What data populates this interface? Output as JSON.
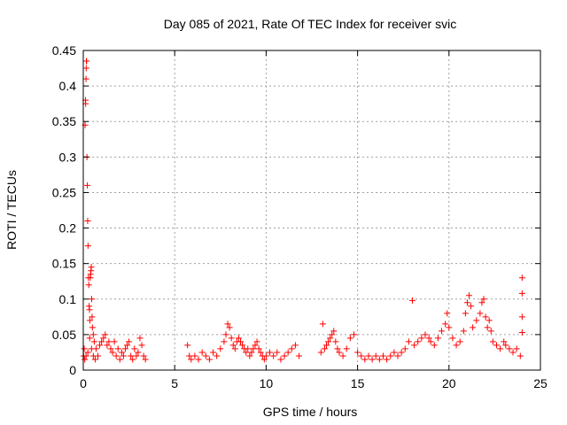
{
  "chart_data": {
    "type": "scatter",
    "title": "Day 085 of 2021, Rate Of TEC Index for receiver svic",
    "xlabel": "GPS time / hours",
    "ylabel": "ROTI / TECUs",
    "xlim": [
      0,
      25
    ],
    "ylim": [
      0,
      0.45
    ],
    "x_ticks": [
      0,
      5,
      10,
      15,
      20,
      25
    ],
    "x_tick_labels": [
      "0",
      "5",
      "10",
      "15",
      "20",
      "25"
    ],
    "y_ticks": [
      0,
      0.05,
      0.1,
      0.15,
      0.2,
      0.25,
      0.3,
      0.35,
      0.4,
      0.45
    ],
    "y_tick_labels": [
      "0",
      "0.05",
      "0.1",
      "0.15",
      "0.2",
      "0.25",
      "0.3",
      "0.35",
      "0.4",
      "0.45"
    ],
    "grid": true,
    "marker": "plus",
    "color": "#ff0000",
    "series": [
      {
        "points": [
          [
            0.02,
            0.02
          ],
          [
            0.05,
            0.03
          ],
          [
            0.08,
            0.015
          ],
          [
            0.1,
            0.345
          ],
          [
            0.12,
            0.38
          ],
          [
            0.13,
            0.375
          ],
          [
            0.15,
            0.41
          ],
          [
            0.16,
            0.425
          ],
          [
            0.17,
            0.435
          ],
          [
            0.18,
            0.435
          ],
          [
            0.2,
            0.3
          ],
          [
            0.22,
            0.26
          ],
          [
            0.24,
            0.21
          ],
          [
            0.26,
            0.175
          ],
          [
            0.28,
            0.13
          ],
          [
            0.3,
            0.12
          ],
          [
            0.32,
            0.09
          ],
          [
            0.34,
            0.085
          ],
          [
            0.36,
            0.07
          ],
          [
            0.38,
            0.13
          ],
          [
            0.4,
            0.135
          ],
          [
            0.42,
            0.14
          ],
          [
            0.44,
            0.145
          ],
          [
            0.46,
            0.1
          ],
          [
            0.48,
            0.075
          ],
          [
            0.5,
            0.06
          ],
          [
            0.55,
            0.05
          ],
          [
            0.6,
            0.04
          ],
          [
            0.15,
            0.02
          ],
          [
            0.25,
            0.025
          ],
          [
            0.35,
            0.045
          ],
          [
            0.45,
            0.03
          ],
          [
            0.55,
            0.02
          ],
          [
            0.65,
            0.015
          ],
          [
            0.7,
            0.03
          ],
          [
            0.8,
            0.02
          ],
          [
            0.9,
            0.035
          ],
          [
            1.0,
            0.04
          ],
          [
            1.1,
            0.045
          ],
          [
            1.2,
            0.05
          ],
          [
            1.3,
            0.035
          ],
          [
            1.4,
            0.04
          ],
          [
            1.5,
            0.03
          ],
          [
            1.6,
            0.025
          ],
          [
            1.7,
            0.04
          ],
          [
            1.8,
            0.02
          ],
          [
            1.9,
            0.03
          ],
          [
            2.0,
            0.015
          ],
          [
            2.1,
            0.025
          ],
          [
            2.2,
            0.02
          ],
          [
            2.3,
            0.03
          ],
          [
            2.4,
            0.035
          ],
          [
            2.5,
            0.04
          ],
          [
            2.6,
            0.02
          ],
          [
            2.7,
            0.015
          ],
          [
            2.8,
            0.03
          ],
          [
            2.9,
            0.02
          ],
          [
            3.0,
            0.025
          ],
          [
            3.1,
            0.045
          ],
          [
            3.2,
            0.035
          ],
          [
            3.3,
            0.02
          ],
          [
            3.4,
            0.015
          ],
          [
            5.7,
            0.035
          ],
          [
            5.8,
            0.02
          ],
          [
            5.9,
            0.015
          ],
          [
            6.1,
            0.02
          ],
          [
            6.3,
            0.015
          ],
          [
            6.5,
            0.025
          ],
          [
            6.7,
            0.02
          ],
          [
            6.9,
            0.015
          ],
          [
            7.1,
            0.025
          ],
          [
            7.3,
            0.02
          ],
          [
            7.5,
            0.03
          ],
          [
            7.7,
            0.04
          ],
          [
            7.8,
            0.05
          ],
          [
            7.9,
            0.065
          ],
          [
            8.0,
            0.06
          ],
          [
            8.1,
            0.045
          ],
          [
            8.2,
            0.035
          ],
          [
            8.3,
            0.03
          ],
          [
            8.4,
            0.04
          ],
          [
            8.5,
            0.045
          ],
          [
            8.6,
            0.04
          ],
          [
            8.7,
            0.035
          ],
          [
            8.8,
            0.03
          ],
          [
            8.9,
            0.025
          ],
          [
            9.0,
            0.03
          ],
          [
            9.1,
            0.02
          ],
          [
            9.2,
            0.025
          ],
          [
            9.3,
            0.03
          ],
          [
            9.4,
            0.035
          ],
          [
            9.5,
            0.04
          ],
          [
            9.6,
            0.03
          ],
          [
            9.7,
            0.025
          ],
          [
            9.8,
            0.02
          ],
          [
            9.9,
            0.015
          ],
          [
            10.0,
            0.02
          ],
          [
            10.2,
            0.025
          ],
          [
            10.4,
            0.02
          ],
          [
            10.6,
            0.025
          ],
          [
            10.8,
            0.015
          ],
          [
            11.0,
            0.02
          ],
          [
            11.2,
            0.025
          ],
          [
            11.4,
            0.03
          ],
          [
            11.6,
            0.035
          ],
          [
            11.8,
            0.02
          ],
          [
            13.0,
            0.025
          ],
          [
            13.1,
            0.065
          ],
          [
            13.2,
            0.03
          ],
          [
            13.3,
            0.035
          ],
          [
            13.4,
            0.04
          ],
          [
            13.5,
            0.045
          ],
          [
            13.6,
            0.05
          ],
          [
            13.7,
            0.055
          ],
          [
            13.8,
            0.04
          ],
          [
            13.9,
            0.03
          ],
          [
            14.0,
            0.025
          ],
          [
            14.2,
            0.02
          ],
          [
            14.4,
            0.03
          ],
          [
            14.6,
            0.045
          ],
          [
            14.8,
            0.05
          ],
          [
            15.0,
            0.025
          ],
          [
            15.2,
            0.02
          ],
          [
            15.4,
            0.015
          ],
          [
            15.6,
            0.02
          ],
          [
            15.8,
            0.015
          ],
          [
            16.0,
            0.02
          ],
          [
            16.2,
            0.015
          ],
          [
            16.4,
            0.02
          ],
          [
            16.6,
            0.015
          ],
          [
            16.8,
            0.02
          ],
          [
            17.0,
            0.025
          ],
          [
            17.2,
            0.02
          ],
          [
            17.4,
            0.025
          ],
          [
            17.6,
            0.03
          ],
          [
            17.8,
            0.04
          ],
          [
            18.0,
            0.098
          ],
          [
            18.1,
            0.035
          ],
          [
            18.3,
            0.04
          ],
          [
            18.5,
            0.045
          ],
          [
            18.7,
            0.05
          ],
          [
            18.9,
            0.045
          ],
          [
            19.0,
            0.04
          ],
          [
            19.2,
            0.035
          ],
          [
            19.4,
            0.045
          ],
          [
            19.6,
            0.055
          ],
          [
            19.8,
            0.065
          ],
          [
            19.9,
            0.08
          ],
          [
            20.0,
            0.06
          ],
          [
            20.2,
            0.045
          ],
          [
            20.4,
            0.035
          ],
          [
            20.6,
            0.04
          ],
          [
            20.8,
            0.055
          ],
          [
            20.9,
            0.08
          ],
          [
            21.0,
            0.095
          ],
          [
            21.1,
            0.105
          ],
          [
            21.2,
            0.09
          ],
          [
            21.3,
            0.06
          ],
          [
            21.5,
            0.07
          ],
          [
            21.7,
            0.08
          ],
          [
            21.8,
            0.095
          ],
          [
            21.9,
            0.1
          ],
          [
            22.0,
            0.075
          ],
          [
            22.1,
            0.06
          ],
          [
            22.2,
            0.07
          ],
          [
            22.3,
            0.055
          ],
          [
            22.4,
            0.04
          ],
          [
            22.6,
            0.035
          ],
          [
            22.8,
            0.03
          ],
          [
            23.0,
            0.04
          ],
          [
            23.1,
            0.035
          ],
          [
            23.3,
            0.03
          ],
          [
            23.5,
            0.025
          ],
          [
            23.7,
            0.03
          ],
          [
            23.9,
            0.02
          ],
          [
            24.0,
            0.13
          ],
          [
            24.0,
            0.108
          ],
          [
            24.0,
            0.075
          ],
          [
            24.0,
            0.053
          ]
        ]
      }
    ]
  }
}
